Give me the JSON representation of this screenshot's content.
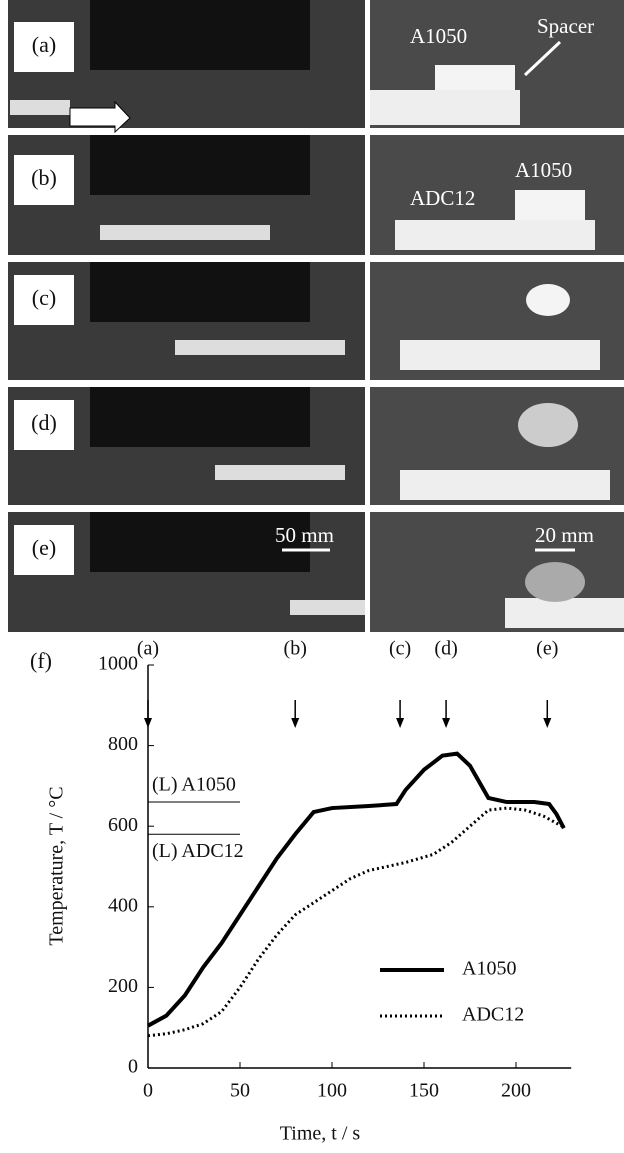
{
  "panels": [
    {
      "label": "(a)",
      "texts": [
        "A1050",
        "Spacer"
      ]
    },
    {
      "label": "(b)",
      "texts": [
        "ADC12",
        "A1050"
      ]
    },
    {
      "label": "(c)",
      "texts": []
    },
    {
      "label": "(d)",
      "texts": []
    },
    {
      "label": "(e)",
      "texts": [
        "50 mm",
        "20 mm"
      ]
    }
  ],
  "chart_data": {
    "type": "line",
    "panel_label": "(f)",
    "x_label": "Time, t / s",
    "y_label": "Temperature, T / °C",
    "xlim": [
      0,
      230
    ],
    "xticks": [
      0,
      50,
      100,
      150,
      200
    ],
    "ylim": [
      0,
      1000
    ],
    "yticks": [
      0,
      200,
      400,
      600,
      800,
      1000
    ],
    "legend": "lower right",
    "series": [
      {
        "name": "A1050",
        "color": "#000000",
        "style": "solid",
        "x": [
          0,
          10,
          20,
          30,
          40,
          50,
          60,
          70,
          80,
          90,
          100,
          120,
          135,
          140,
          150,
          160,
          168,
          175,
          185,
          195,
          210,
          218,
          222,
          226
        ],
        "values": [
          105,
          130,
          180,
          250,
          310,
          380,
          450,
          520,
          580,
          635,
          645,
          650,
          655,
          690,
          740,
          775,
          780,
          750,
          670,
          660,
          660,
          655,
          630,
          595
        ]
      },
      {
        "name": "ADC12",
        "color": "#000000",
        "style": "dotted",
        "x": [
          0,
          10,
          20,
          30,
          40,
          50,
          60,
          70,
          80,
          90,
          100,
          110,
          120,
          130,
          140,
          155,
          165,
          175,
          185,
          195,
          205,
          215,
          225
        ],
        "values": [
          80,
          85,
          95,
          110,
          140,
          200,
          270,
          330,
          380,
          410,
          440,
          470,
          490,
          500,
          510,
          530,
          560,
          600,
          640,
          645,
          640,
          625,
          600
        ]
      }
    ],
    "event_markers": [
      {
        "label": "(a)",
        "x": 0
      },
      {
        "label": "(b)",
        "x": 80
      },
      {
        "label": "(c)",
        "x": 137
      },
      {
        "label": "(d)",
        "x": 162
      },
      {
        "label": "(e)",
        "x": 217
      }
    ],
    "reference_lines": [
      {
        "label": "(L) A1050",
        "value": 660
      },
      {
        "label": "(L) ADC12",
        "value": 580
      }
    ]
  }
}
